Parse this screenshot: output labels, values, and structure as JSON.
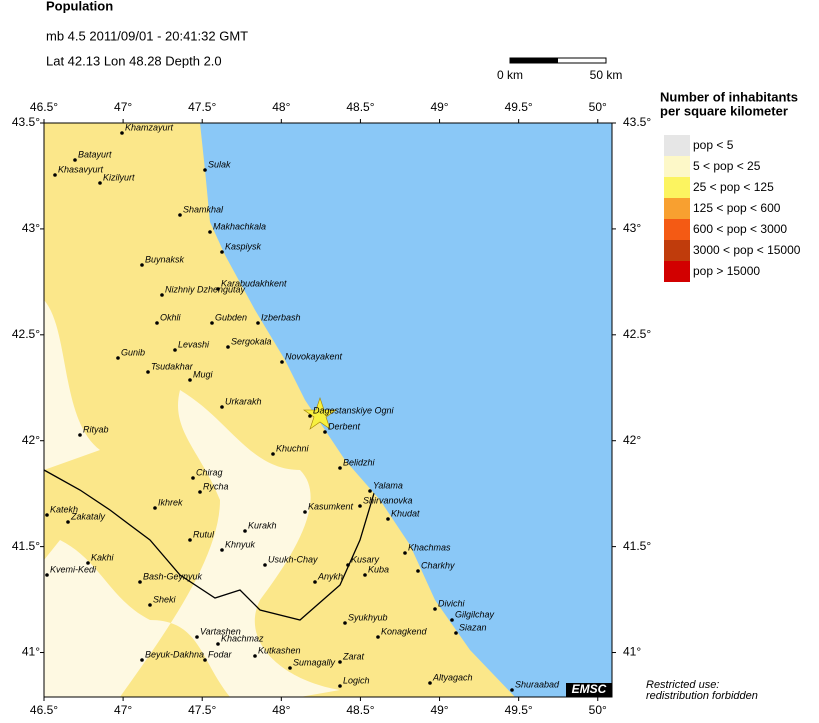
{
  "header": {
    "title": "Population",
    "event": "mb 4.5  2011/09/01 - 20:41:32 GMT",
    "location": "Lat 42.13   Lon 48.28   Depth  2.0"
  },
  "scale_bar": {
    "start": "0 km",
    "end": "50 km"
  },
  "map": {
    "xlim": [
      46.5,
      50.09
    ],
    "ylim": [
      40.79,
      43.5
    ],
    "xticks": [
      {
        "value": 46.5,
        "label": "46.5°"
      },
      {
        "value": 47,
        "label": "47°"
      },
      {
        "value": 47.5,
        "label": "47.5°"
      },
      {
        "value": 48,
        "label": "48°"
      },
      {
        "value": 48.5,
        "label": "48.5°"
      },
      {
        "value": 49,
        "label": "49°"
      },
      {
        "value": 49.5,
        "label": "49.5°"
      },
      {
        "value": 50,
        "label": "50°"
      }
    ],
    "yticks": [
      {
        "value": 41,
        "label": "41°"
      },
      {
        "value": 41.5,
        "label": "41.5°"
      },
      {
        "value": 42,
        "label": "42°"
      },
      {
        "value": 42.5,
        "label": "42.5°"
      },
      {
        "value": 43,
        "label": "43°"
      },
      {
        "value": 43.5,
        "label": "43.5°"
      }
    ]
  },
  "cities": [
    "Khamzayurt",
    "Batayurt",
    "Khasavyurt",
    "Kizilyurt",
    "Sulak",
    "Shamkhal",
    "Makhachkala",
    "Kaspiysk",
    "Buynaksk",
    "Nizhniy Dzhengutay",
    "Karabudakhkent",
    "Okhli",
    "Gubden",
    "Izberbash",
    "Levashi",
    "Sergokala",
    "Gunib",
    "Novokayakent",
    "Tsudakhar",
    "Mugi",
    "Urkarakh",
    "Dagestanskiye Ogni",
    "Derbent",
    "Rityab",
    "Khuchni",
    "Belidzhi",
    "Chirag",
    "Yalama",
    "Rycha",
    "Shirvanovka",
    "Ikhrek",
    "Kasumkent",
    "Khudat",
    "Katekh",
    "Zakataly",
    "Kurakh",
    "Rutul",
    "Khnyuk",
    "Khachmas",
    "Kakhi",
    "Usukh-Chay",
    "Kusary",
    "Charkhy",
    "Kvemi-Kedi",
    "Kuba",
    "Anykh",
    "Bash-Geynyuk",
    "Sheki",
    "Divichi",
    "Gilgilchay",
    "Syukhyub",
    "Siazan",
    "Vartashen",
    "Konagkend",
    "Khachmaz",
    "Beyuk-Dakhna",
    "Fodar",
    "Kutkashen",
    "Zarat",
    "Sumagally",
    "Altyagach",
    "Logich",
    "Shuraabad"
  ],
  "legend": {
    "title_line1": "Number of inhabitants",
    "title_line2": "per square kilometer",
    "items": [
      {
        "label": "pop < 5",
        "color": "#e6e6e6"
      },
      {
        "label": "5 < pop < 25",
        "color": "#fdf8c8"
      },
      {
        "label": "25 < pop < 125",
        "color": "#fcf460"
      },
      {
        "label": "125 < pop < 600",
        "color": "#f8a030"
      },
      {
        "label": "600 < pop < 3000",
        "color": "#f45a14"
      },
      {
        "label": "3000 < pop < 15000",
        "color": "#c03c0c"
      },
      {
        "label": "pop > 15000",
        "color": "#d20000"
      }
    ]
  },
  "logo": "EMSC",
  "notice": {
    "line1": "Restricted use:",
    "line2": "redistribution forbidden"
  }
}
